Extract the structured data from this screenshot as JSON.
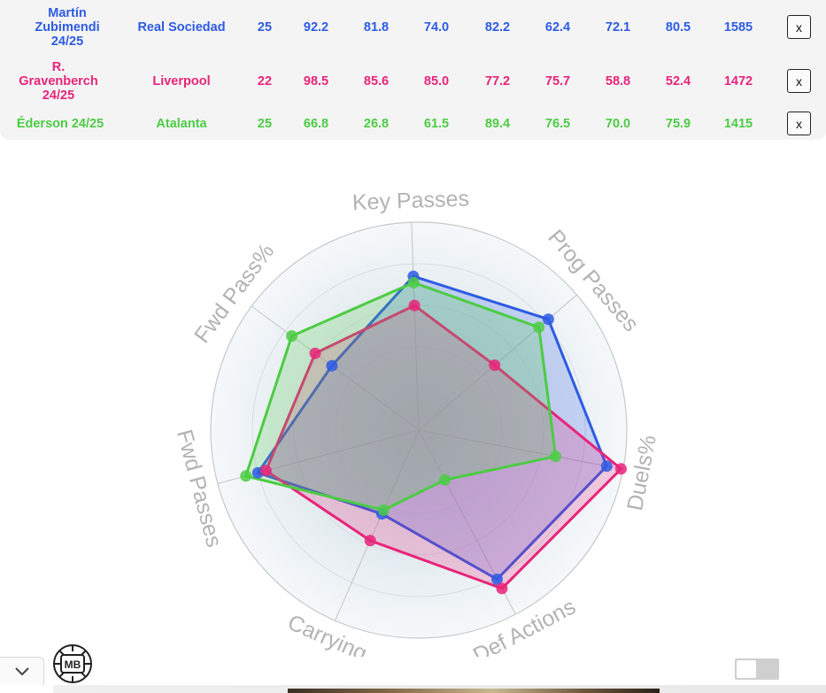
{
  "players": [
    {
      "name": "Martín Zubimendi 24/25",
      "team": "Real Sociedad",
      "age": "25",
      "stats": [
        "92.2",
        "81.8",
        "74.0",
        "82.2",
        "62.4",
        "72.1",
        "80.5"
      ],
      "total": "1585",
      "color": "#2d5be3",
      "remove_label": "x"
    },
    {
      "name": "R. Gravenberch 24/25",
      "team": "Liverpool",
      "age": "22",
      "stats": [
        "98.5",
        "85.6",
        "85.0",
        "77.2",
        "75.7",
        "58.8",
        "52.4"
      ],
      "total": "1472",
      "color": "#e8247a",
      "remove_label": "x"
    },
    {
      "name": "Éderson 24/25",
      "team": "Atalanta",
      "age": "25",
      "stats": [
        "66.8",
        "26.8",
        "61.5",
        "89.4",
        "76.5",
        "70.0",
        "75.9"
      ],
      "total": "1415",
      "color": "#4ccc44",
      "remove_label": "x"
    }
  ],
  "chart_data": {
    "type": "radar",
    "axes": [
      "Key Passes",
      "Prog Passes",
      "Duels%",
      "Def Actions",
      "Carrying",
      "Fwd Passes",
      "Fwd Pass%"
    ],
    "range": [
      0,
      100
    ],
    "series": [
      {
        "name": "Martín Zubimendi 24/25",
        "color": "#2d5be3",
        "values": [
          74,
          82,
          92,
          81,
          44,
          80,
          52
        ]
      },
      {
        "name": "R. Gravenberch 24/25",
        "color": "#e8247a",
        "values": [
          60,
          48,
          99,
          86,
          58,
          76,
          62
        ]
      },
      {
        "name": "Éderson 24/25",
        "color": "#4ccc44",
        "values": [
          71,
          76,
          67,
          27,
          42,
          86,
          76
        ]
      }
    ]
  },
  "logo": {
    "text": "MB"
  },
  "icons": {
    "collapse": "chevron-down-icon"
  }
}
